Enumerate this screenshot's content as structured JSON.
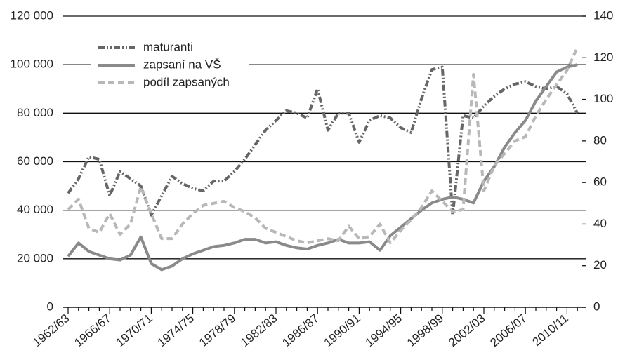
{
  "chart_data": {
    "type": "line",
    "categories": [
      "1962/63",
      null,
      null,
      null,
      "1966/67",
      null,
      null,
      null,
      "1970/71",
      null,
      null,
      null,
      "1974/75",
      null,
      null,
      null,
      "1978/79",
      null,
      null,
      null,
      "1982/83",
      null,
      null,
      null,
      "1986/87",
      null,
      null,
      null,
      "1990/91",
      null,
      null,
      null,
      "1994/95",
      null,
      null,
      null,
      "1998/99",
      null,
      null,
      null,
      "2002/03",
      null,
      null,
      null,
      "2006/07",
      null,
      null,
      null,
      "2010/11",
      null
    ],
    "series": [
      {
        "name": "maturanti",
        "color": "#666666",
        "dash": "dashdot",
        "values": [
          47000,
          53000,
          62000,
          61000,
          46000,
          56000,
          53000,
          50000,
          38000,
          46000,
          54000,
          51000,
          49000,
          48000,
          52000,
          52000,
          56000,
          61000,
          67000,
          73000,
          77000,
          81000,
          80000,
          78000,
          90000,
          73000,
          80000,
          80000,
          68000,
          77000,
          79000,
          78000,
          74000,
          72000,
          86000,
          98000,
          99000,
          38000,
          79000,
          78000,
          83000,
          87000,
          90000,
          92000,
          93000,
          91000,
          90000,
          91000,
          88000,
          80000
        ]
      },
      {
        "name": "zapsaní na VŠ",
        "color": "#8a8a8a",
        "dash": "solid",
        "values": [
          21000,
          26500,
          23000,
          21500,
          20000,
          19500,
          21500,
          29000,
          18000,
          15500,
          17000,
          20000,
          22000,
          23500,
          25000,
          25500,
          26500,
          28000,
          28000,
          26500,
          27000,
          25500,
          24500,
          24000,
          25500,
          26500,
          28000,
          26500,
          26500,
          27000,
          23500,
          29500,
          33000,
          36500,
          40000,
          43000,
          44500,
          45500,
          44500,
          43000,
          52000,
          58000,
          66000,
          72000,
          77000,
          85000,
          91000,
          97000,
          99000,
          100000
        ]
      },
      {
        "name": "podíl zapsaných",
        "color": "#b8b8b8",
        "dash": "dashed",
        "axis": "y2",
        "values": [
          47,
          52,
          38,
          36,
          45,
          35,
          40,
          58,
          45,
          33,
          33,
          40,
          45,
          49,
          50,
          51,
          48,
          46,
          43,
          38,
          36,
          34,
          32,
          31,
          32,
          33,
          32,
          39,
          33,
          34,
          40,
          31,
          37,
          42,
          48,
          56,
          51,
          46,
          47,
          112,
          56,
          68,
          74,
          80,
          82,
          92,
          100,
          107,
          114,
          125
        ]
      }
    ],
    "ylim": [
      0,
      120000
    ],
    "yticks": [
      0,
      {
        "value": 20000,
        "label": "20 000"
      },
      {
        "value": 40000,
        "label": "40 000"
      },
      {
        "value": 60000,
        "label": "60 000"
      },
      {
        "value": 80000,
        "label": "80 000"
      },
      {
        "value": 100000,
        "label": "100 000"
      },
      {
        "value": 120000,
        "label": "120 000"
      }
    ],
    "y2lim": [
      0,
      140
    ],
    "y2ticks": [
      0,
      20,
      40,
      60,
      80,
      100,
      120,
      140
    ],
    "grid": true,
    "legend": "upper-left"
  }
}
